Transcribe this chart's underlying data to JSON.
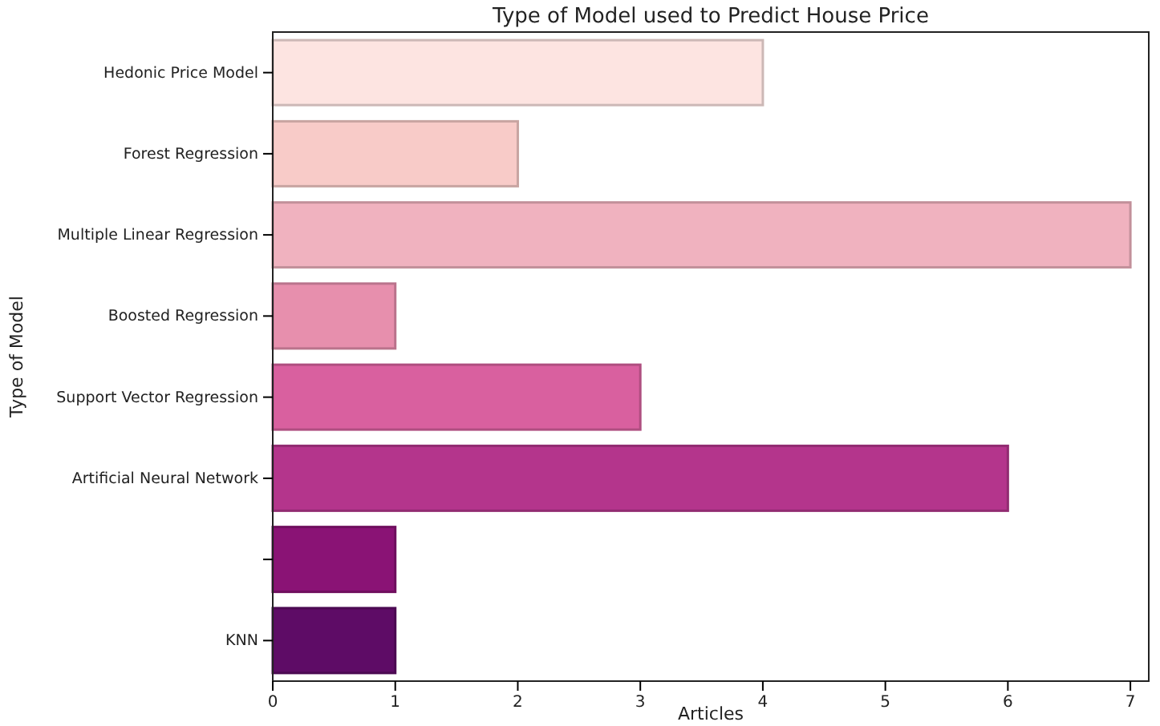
{
  "chart_data": {
    "type": "bar",
    "orientation": "horizontal",
    "title": "Type of Model used to Predict House Price",
    "xlabel": "Articles",
    "ylabel": "Type of Model",
    "categories": [
      "Hedonic Price Model",
      "Forest Regression",
      "Multiple Linear Regression",
      "Boosted Regression",
      "Support Vector Regression",
      "Artificial Neural Network",
      null,
      "KNN"
    ],
    "values": [
      4,
      2,
      7,
      1,
      3,
      6,
      1,
      1
    ],
    "colors": [
      "#fde4e1",
      "#f8cbc8",
      "#f0b2bf",
      "#e78fad",
      "#d9609f",
      "#b4358c",
      "#8a1375",
      "#5e0c66"
    ],
    "xlim": [
      0,
      7.15
    ],
    "xticks": [
      0,
      1,
      2,
      3,
      4,
      5,
      6,
      7
    ],
    "grid": false
  }
}
